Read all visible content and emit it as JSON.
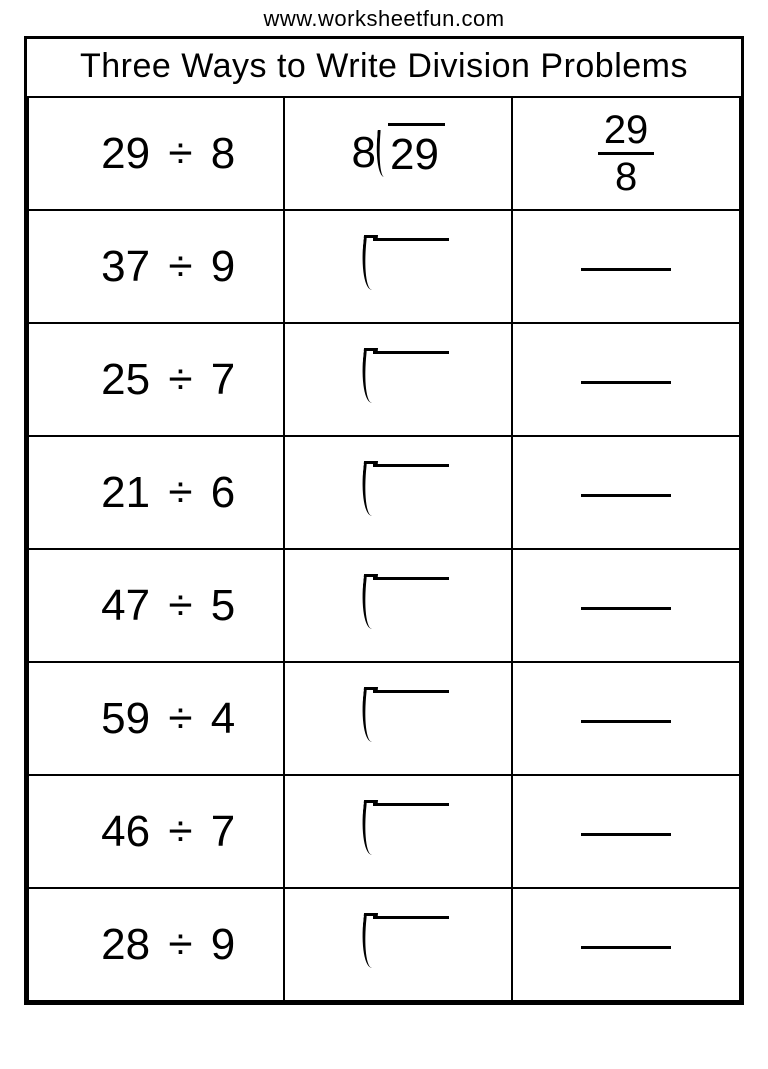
{
  "url": "www.worksheetfun.com",
  "title": "Three Ways to Write Division Problems",
  "division_symbol": "÷",
  "colors": {
    "border": "#000000",
    "text": "#000000",
    "background": "#ffffff"
  },
  "font": {
    "title_size_pt": 26,
    "expr_size_pt": 33,
    "family": "Arial"
  },
  "columns": [
    "expression",
    "long_division",
    "fraction"
  ],
  "rows": [
    {
      "dividend": 29,
      "divisor": 8,
      "filled": true
    },
    {
      "dividend": 37,
      "divisor": 9,
      "filled": false
    },
    {
      "dividend": 25,
      "divisor": 7,
      "filled": false
    },
    {
      "dividend": 21,
      "divisor": 6,
      "filled": false
    },
    {
      "dividend": 47,
      "divisor": 5,
      "filled": false
    },
    {
      "dividend": 59,
      "divisor": 4,
      "filled": false
    },
    {
      "dividend": 46,
      "divisor": 7,
      "filled": false
    },
    {
      "dividend": 28,
      "divisor": 9,
      "filled": false
    }
  ]
}
